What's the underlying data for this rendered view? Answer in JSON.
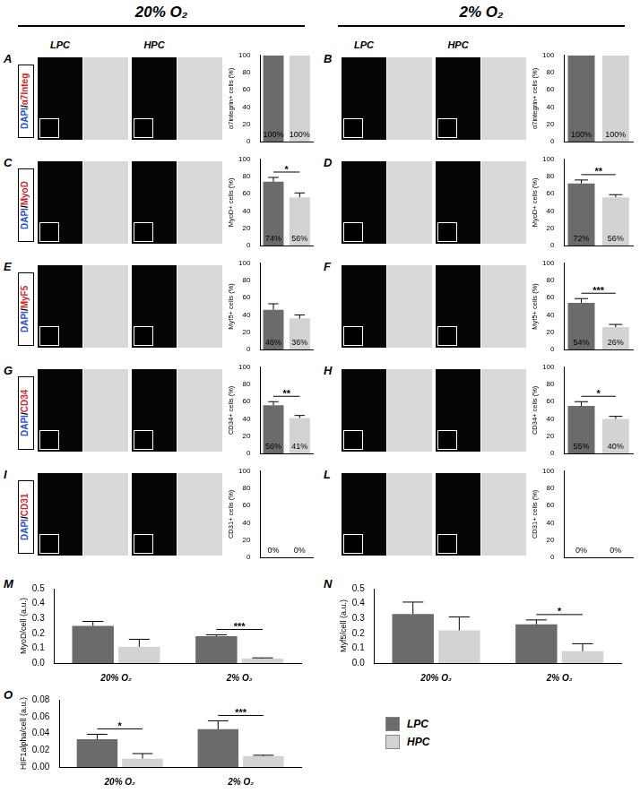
{
  "figure": {
    "headers": [
      "20% O₂",
      "2% O₂"
    ],
    "image_labels": [
      "LPC",
      "HPC"
    ],
    "row_labels": [
      {
        "stain": "DAPI",
        "marker": "α7Integ"
      },
      {
        "stain": "DAPI",
        "marker": "MyoD"
      },
      {
        "stain": "DAPI",
        "marker": "MyF5"
      },
      {
        "stain": "DAPI",
        "marker": "CD34"
      },
      {
        "stain": "DAPI",
        "marker": "CD31"
      }
    ]
  },
  "chart_data": [
    {
      "panel": "A",
      "type": "bar",
      "categories": [
        null,
        null
      ],
      "values": [
        100,
        100
      ],
      "value_labels": [
        "100%",
        "100%"
      ],
      "data_labels": true,
      "colors": [
        "#6b6b6b",
        "#d3d3d3"
      ],
      "y_label": "α7integrin+ cells (%)",
      "ylim": [
        0,
        100
      ],
      "yticks": [
        0,
        20,
        40,
        60,
        80,
        100
      ],
      "grid": false,
      "tick_labels": "y"
    },
    {
      "panel": "B",
      "type": "bar",
      "categories": [
        null,
        null
      ],
      "values": [
        100,
        100
      ],
      "value_labels": [
        "100%",
        "100%"
      ],
      "data_labels": true,
      "colors": [
        "#6b6b6b",
        "#d3d3d3"
      ],
      "y_label": "α7integrin+ cells (%)",
      "ylim": [
        0,
        100
      ],
      "yticks": [
        0,
        20,
        40,
        60,
        80,
        100
      ],
      "grid": false,
      "tick_labels": "y"
    },
    {
      "panel": "C",
      "type": "bar",
      "categories": [
        null,
        null
      ],
      "values": [
        74,
        56
      ],
      "errors": [
        5,
        5
      ],
      "value_labels": [
        "74%",
        "56%"
      ],
      "data_labels": true,
      "significance": "*",
      "colors": [
        "#6b6b6b",
        "#d3d3d3"
      ],
      "y_label": "MyoD+ cells (%)",
      "ylim": [
        0,
        100
      ],
      "yticks": [
        0,
        20,
        40,
        60,
        80,
        100
      ],
      "grid": false,
      "tick_labels": "y"
    },
    {
      "panel": "D",
      "type": "bar",
      "categories": [
        null,
        null
      ],
      "values": [
        72,
        56
      ],
      "errors": [
        4,
        3
      ],
      "value_labels": [
        "72%",
        "56%"
      ],
      "data_labels": true,
      "significance": "**",
      "colors": [
        "#6b6b6b",
        "#d3d3d3"
      ],
      "y_label": "MyoD+ cells (%)",
      "ylim": [
        0,
        100
      ],
      "yticks": [
        0,
        20,
        40,
        60,
        80,
        100
      ],
      "grid": false,
      "tick_labels": "y"
    },
    {
      "panel": "E",
      "type": "bar",
      "categories": [
        null,
        null
      ],
      "values": [
        46,
        36
      ],
      "errors": [
        7,
        4
      ],
      "value_labels": [
        "46%",
        "36%"
      ],
      "data_labels": true,
      "colors": [
        "#6b6b6b",
        "#d3d3d3"
      ],
      "y_label": "Myf5+ cells (%)",
      "ylim": [
        0,
        100
      ],
      "yticks": [
        0,
        20,
        40,
        60,
        80,
        100
      ],
      "grid": false,
      "tick_labels": "y"
    },
    {
      "panel": "F",
      "type": "bar",
      "categories": [
        null,
        null
      ],
      "values": [
        54,
        26
      ],
      "errors": [
        5,
        3
      ],
      "value_labels": [
        "54%",
        "26%"
      ],
      "data_labels": true,
      "significance": "***",
      "colors": [
        "#6b6b6b",
        "#d3d3d3"
      ],
      "y_label": "Myf5+ cells (%)",
      "ylim": [
        0,
        100
      ],
      "yticks": [
        0,
        20,
        40,
        60,
        80,
        100
      ],
      "grid": false,
      "tick_labels": "y"
    },
    {
      "panel": "G",
      "type": "bar",
      "categories": [
        null,
        null
      ],
      "values": [
        56,
        41
      ],
      "errors": [
        4,
        3
      ],
      "value_labels": [
        "56%",
        "41%"
      ],
      "data_labels": true,
      "significance": "**",
      "colors": [
        "#6b6b6b",
        "#d3d3d3"
      ],
      "y_label": "CD34+ cells (%)",
      "ylim": [
        0,
        100
      ],
      "yticks": [
        0,
        20,
        40,
        60,
        80,
        100
      ],
      "grid": false,
      "tick_labels": "y"
    },
    {
      "panel": "H",
      "type": "bar",
      "categories": [
        null,
        null
      ],
      "values": [
        55,
        40
      ],
      "errors": [
        5,
        3
      ],
      "value_labels": [
        "55%",
        "40%"
      ],
      "data_labels": true,
      "significance": "*",
      "colors": [
        "#6b6b6b",
        "#d3d3d3"
      ],
      "y_label": "CD34+ cells (%)",
      "ylim": [
        0,
        100
      ],
      "yticks": [
        0,
        20,
        40,
        60,
        80,
        100
      ],
      "grid": false,
      "tick_labels": "y"
    },
    {
      "panel": "I",
      "type": "bar",
      "categories": [
        null,
        null
      ],
      "values": [
        0,
        0
      ],
      "value_labels": [
        "0%",
        "0%"
      ],
      "data_labels": true,
      "colors": [
        "#6b6b6b",
        "#d3d3d3"
      ],
      "y_label": "CD31+ cells (%)",
      "ylim": [
        0,
        100
      ],
      "yticks": [
        0,
        20,
        40,
        60,
        80,
        100
      ],
      "grid": false,
      "tick_labels": "y"
    },
    {
      "panel": "L",
      "type": "bar",
      "categories": [
        null,
        null
      ],
      "values": [
        0,
        0
      ],
      "value_labels": [
        "0%",
        "0%"
      ],
      "data_labels": true,
      "colors": [
        "#6b6b6b",
        "#d3d3d3"
      ],
      "y_label": "CD31+ cells (%)",
      "ylim": [
        0,
        100
      ],
      "yticks": [
        0,
        20,
        40,
        60,
        80,
        100
      ],
      "grid": false,
      "tick_labels": "y"
    },
    {
      "panel": "M",
      "type": "bar",
      "categories": [
        "20% O₂",
        "2% O₂"
      ],
      "series": [
        {
          "name": "LPC",
          "color": "#6b6b6b",
          "values": [
            0.25,
            0.18
          ],
          "errors": [
            0.03,
            0.01
          ]
        },
        {
          "name": "HPC",
          "color": "#d3d3d3",
          "values": [
            0.11,
            0.03
          ],
          "errors": [
            0.05,
            0.005
          ]
        }
      ],
      "significance": [
        null,
        "***"
      ],
      "y_label": "MyoD/cell (a.u.)",
      "ylim": [
        0,
        0.5
      ],
      "yticks": [
        {
          "value": 0,
          "label": "0.0"
        },
        {
          "value": 0.1,
          "label": "0.1"
        },
        {
          "value": 0.2,
          "label": "0.2"
        },
        {
          "value": 0.3,
          "label": "0.3"
        },
        {
          "value": 0.4,
          "label": "0.4"
        },
        {
          "value": 0.5,
          "label": "0.5"
        }
      ],
      "grid": false
    },
    {
      "panel": "N",
      "type": "bar",
      "categories": [
        "20% O₂",
        "2% O₂"
      ],
      "series": [
        {
          "name": "LPC",
          "color": "#6b6b6b",
          "values": [
            0.33,
            0.26
          ],
          "errors": [
            0.08,
            0.03
          ]
        },
        {
          "name": "HPC",
          "color": "#d3d3d3",
          "values": [
            0.22,
            0.08
          ],
          "errors": [
            0.09,
            0.05
          ]
        }
      ],
      "significance": [
        null,
        "*"
      ],
      "y_label": "Myf5/cell (a.u.)",
      "ylim": [
        0,
        0.5
      ],
      "yticks": [
        {
          "value": 0,
          "label": "0.0"
        },
        {
          "value": 0.1,
          "label": "0.1"
        },
        {
          "value": 0.2,
          "label": "0.2"
        },
        {
          "value": 0.3,
          "label": "0.3"
        },
        {
          "value": 0.4,
          "label": "0.4"
        },
        {
          "value": 0.5,
          "label": "0.5"
        }
      ],
      "grid": false
    },
    {
      "panel": "O",
      "type": "bar",
      "categories": [
        "20% O₂",
        "2% O₂"
      ],
      "series": [
        {
          "name": "LPC",
          "color": "#6b6b6b",
          "values": [
            0.033,
            0.045
          ],
          "errors": [
            0.006,
            0.01
          ]
        },
        {
          "name": "HPC",
          "color": "#d3d3d3",
          "values": [
            0.01,
            0.013
          ],
          "errors": [
            0.006,
            0.001
          ]
        }
      ],
      "significance": [
        "*",
        "***"
      ],
      "y_label": "HIF1alpha/cell (a.u.)",
      "ylim": [
        0,
        0.08
      ],
      "yticks": [
        {
          "value": 0,
          "label": "0.00"
        },
        {
          "value": 0.02,
          "label": "0.02"
        },
        {
          "value": 0.04,
          "label": "0.04"
        },
        {
          "value": 0.06,
          "label": "0.06"
        },
        {
          "value": 0.08,
          "label": "0.08"
        }
      ],
      "grid": false
    }
  ]
}
